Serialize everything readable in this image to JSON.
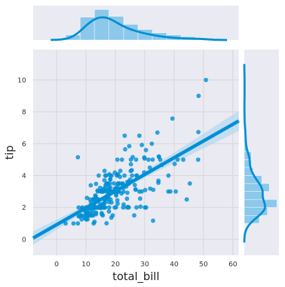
{
  "chart_data": {
    "type": "scatter",
    "subtype": "jointplot-with-regression",
    "xlabel": "total_bill",
    "ylabel": "tip",
    "xlim": [
      -8,
      62
    ],
    "ylim": [
      -1,
      11.9
    ],
    "xticks": [
      0,
      10,
      20,
      30,
      40,
      50,
      60
    ],
    "yticks": [
      0,
      2,
      4,
      6,
      8,
      10
    ],
    "grid": true,
    "colors": {
      "main": "#008fd5",
      "band": "#a8d3f0",
      "hist": "#8cc8ea",
      "panel": "#eaeaf2",
      "grid": "#d6d6d6"
    },
    "regression": {
      "intercept": 0.92,
      "slope": 0.105,
      "ci_halfwidth_at_mean": 0.13
    },
    "x_marginal_hist": {
      "bins": [
        3.07,
        8.0,
        12.9,
        17.8,
        22.8,
        27.7,
        32.6,
        37.5,
        42.4,
        47.3,
        50.81
      ],
      "density": [
        0.012,
        0.054,
        0.072,
        0.056,
        0.037,
        0.025,
        0.017,
        0.012,
        0.008,
        0.005
      ]
    },
    "y_marginal_hist": {
      "bins": [
        1.0,
        1.5,
        2.0,
        2.5,
        3.0,
        3.5,
        4.0,
        4.5,
        5.0,
        5.5,
        6.0,
        7.0
      ],
      "density": [
        0.24,
        0.37,
        0.52,
        0.3,
        0.4,
        0.28,
        0.14,
        0.09,
        0.11,
        0.04,
        0.02
      ]
    },
    "points": [
      [
        16.99,
        1.01
      ],
      [
        10.34,
        1.66
      ],
      [
        21.01,
        3.5
      ],
      [
        23.68,
        3.31
      ],
      [
        24.59,
        3.61
      ],
      [
        25.29,
        4.71
      ],
      [
        8.77,
        2.0
      ],
      [
        26.88,
        3.12
      ],
      [
        15.04,
        1.96
      ],
      [
        14.78,
        3.23
      ],
      [
        10.27,
        1.71
      ],
      [
        35.26,
        5.0
      ],
      [
        15.42,
        1.57
      ],
      [
        18.43,
        3.0
      ],
      [
        14.83,
        3.02
      ],
      [
        21.58,
        3.92
      ],
      [
        10.33,
        1.67
      ],
      [
        16.29,
        3.71
      ],
      [
        16.97,
        3.5
      ],
      [
        20.65,
        3.35
      ],
      [
        17.92,
        4.08
      ],
      [
        20.29,
        2.75
      ],
      [
        15.77,
        2.23
      ],
      [
        39.42,
        7.58
      ],
      [
        19.82,
        3.18
      ],
      [
        17.81,
        2.34
      ],
      [
        13.37,
        2.0
      ],
      [
        12.69,
        2.0
      ],
      [
        21.7,
        4.3
      ],
      [
        19.65,
        3.0
      ],
      [
        9.55,
        1.45
      ],
      [
        18.35,
        2.5
      ],
      [
        15.06,
        3.0
      ],
      [
        20.69,
        2.45
      ],
      [
        17.78,
        3.27
      ],
      [
        24.06,
        3.6
      ],
      [
        16.31,
        2.0
      ],
      [
        16.93,
        3.07
      ],
      [
        18.69,
        2.31
      ],
      [
        31.27,
        5.0
      ],
      [
        16.04,
        2.24
      ],
      [
        17.46,
        2.54
      ],
      [
        13.94,
        3.06
      ],
      [
        9.68,
        1.32
      ],
      [
        30.4,
        5.6
      ],
      [
        18.29,
        3.0
      ],
      [
        22.23,
        5.0
      ],
      [
        32.4,
        6.0
      ],
      [
        28.55,
        2.05
      ],
      [
        18.04,
        3.0
      ],
      [
        12.54,
        2.5
      ],
      [
        10.29,
        2.6
      ],
      [
        34.81,
        5.2
      ],
      [
        9.94,
        1.56
      ],
      [
        25.56,
        4.34
      ],
      [
        19.49,
        3.51
      ],
      [
        38.01,
        3.0
      ],
      [
        26.41,
        1.5
      ],
      [
        11.24,
        1.76
      ],
      [
        48.27,
        6.73
      ],
      [
        20.29,
        3.21
      ],
      [
        13.81,
        2.0
      ],
      [
        11.02,
        1.98
      ],
      [
        18.29,
        3.76
      ],
      [
        17.59,
        2.64
      ],
      [
        20.08,
        3.15
      ],
      [
        16.45,
        2.47
      ],
      [
        3.07,
        1.0
      ],
      [
        20.23,
        2.01
      ],
      [
        15.01,
        2.09
      ],
      [
        12.02,
        1.97
      ],
      [
        17.07,
        3.0
      ],
      [
        26.86,
        3.14
      ],
      [
        25.28,
        5.0
      ],
      [
        14.73,
        2.2
      ],
      [
        10.51,
        1.25
      ],
      [
        17.92,
        3.08
      ],
      [
        27.2,
        4.0
      ],
      [
        22.76,
        3.0
      ],
      [
        17.29,
        2.71
      ],
      [
        19.44,
        3.0
      ],
      [
        16.66,
        3.4
      ],
      [
        10.07,
        1.83
      ],
      [
        32.68,
        5.0
      ],
      [
        15.98,
        2.03
      ],
      [
        34.83,
        5.17
      ],
      [
        13.03,
        2.0
      ],
      [
        18.28,
        4.0
      ],
      [
        24.71,
        5.85
      ],
      [
        21.16,
        3.0
      ],
      [
        28.97,
        3.0
      ],
      [
        22.49,
        3.5
      ],
      [
        5.75,
        1.0
      ],
      [
        16.32,
        4.3
      ],
      [
        22.75,
        3.25
      ],
      [
        40.17,
        4.73
      ],
      [
        27.28,
        4.0
      ],
      [
        12.03,
        1.5
      ],
      [
        21.01,
        3.0
      ],
      [
        12.46,
        1.5
      ],
      [
        11.35,
        2.5
      ],
      [
        15.38,
        3.0
      ],
      [
        44.3,
        2.5
      ],
      [
        22.42,
        3.48
      ],
      [
        20.92,
        4.08
      ],
      [
        15.36,
        1.64
      ],
      [
        20.49,
        4.06
      ],
      [
        25.21,
        4.29
      ],
      [
        18.24,
        3.76
      ],
      [
        14.31,
        4.0
      ],
      [
        14.0,
        3.0
      ],
      [
        7.25,
        1.0
      ],
      [
        38.07,
        4.0
      ],
      [
        23.95,
        2.55
      ],
      [
        25.71,
        4.0
      ],
      [
        17.31,
        3.5
      ],
      [
        29.93,
        5.07
      ],
      [
        10.65,
        1.5
      ],
      [
        12.43,
        1.8
      ],
      [
        24.08,
        2.92
      ],
      [
        11.69,
        2.31
      ],
      [
        13.42,
        1.68
      ],
      [
        14.26,
        2.5
      ],
      [
        15.95,
        2.0
      ],
      [
        12.48,
        2.52
      ],
      [
        29.8,
        4.2
      ],
      [
        8.52,
        1.48
      ],
      [
        14.52,
        2.0
      ],
      [
        11.38,
        2.0
      ],
      [
        22.82,
        2.18
      ],
      [
        19.08,
        1.5
      ],
      [
        20.27,
        2.83
      ],
      [
        11.17,
        1.5
      ],
      [
        12.26,
        2.0
      ],
      [
        18.26,
        3.25
      ],
      [
        8.51,
        1.25
      ],
      [
        10.33,
        2.0
      ],
      [
        14.15,
        2.0
      ],
      [
        16.0,
        2.0
      ],
      [
        13.16,
        2.75
      ],
      [
        17.47,
        3.5
      ],
      [
        34.3,
        6.7
      ],
      [
        41.19,
        5.0
      ],
      [
        27.05,
        5.0
      ],
      [
        16.43,
        2.3
      ],
      [
        8.35,
        1.5
      ],
      [
        18.64,
        1.36
      ],
      [
        11.87,
        1.63
      ],
      [
        9.78,
        1.73
      ],
      [
        7.51,
        2.0
      ],
      [
        14.07,
        2.5
      ],
      [
        13.13,
        2.0
      ],
      [
        17.26,
        2.74
      ],
      [
        24.55,
        2.0
      ],
      [
        19.77,
        2.0
      ],
      [
        29.85,
        5.14
      ],
      [
        48.17,
        5.0
      ],
      [
        25.0,
        3.75
      ],
      [
        13.39,
        2.61
      ],
      [
        16.49,
        2.0
      ],
      [
        21.5,
        3.5
      ],
      [
        12.66,
        2.5
      ],
      [
        16.21,
        2.0
      ],
      [
        13.81,
        2.0
      ],
      [
        17.51,
        3.0
      ],
      [
        24.52,
        3.48
      ],
      [
        20.76,
        2.24
      ],
      [
        31.71,
        4.5
      ],
      [
        10.59,
        1.61
      ],
      [
        10.63,
        2.0
      ],
      [
        50.81,
        10.0
      ],
      [
        15.81,
        3.16
      ],
      [
        7.25,
        5.15
      ],
      [
        31.85,
        3.18
      ],
      [
        16.82,
        4.0
      ],
      [
        32.9,
        3.11
      ],
      [
        17.89,
        2.0
      ],
      [
        14.48,
        2.0
      ],
      [
        34.63,
        3.55
      ],
      [
        34.65,
        3.68
      ],
      [
        23.33,
        5.65
      ],
      [
        45.35,
        3.5
      ],
      [
        23.17,
        6.5
      ],
      [
        40.55,
        3.0
      ],
      [
        20.69,
        5.0
      ],
      [
        20.9,
        3.5
      ],
      [
        30.46,
        2.0
      ],
      [
        18.15,
        3.5
      ],
      [
        23.1,
        4.0
      ],
      [
        15.69,
        1.5
      ],
      [
        19.81,
        4.19
      ],
      [
        28.44,
        2.56
      ],
      [
        15.48,
        2.02
      ],
      [
        16.58,
        4.0
      ],
      [
        7.56,
        1.44
      ],
      [
        10.34,
        2.0
      ],
      [
        43.11,
        5.0
      ],
      [
        13.0,
        2.0
      ],
      [
        13.51,
        2.0
      ],
      [
        18.71,
        4.0
      ],
      [
        12.74,
        2.01
      ],
      [
        13.0,
        2.0
      ],
      [
        16.4,
        2.5
      ],
      [
        20.53,
        4.0
      ],
      [
        16.47,
        3.23
      ],
      [
        26.59,
        3.41
      ],
      [
        38.73,
        3.0
      ],
      [
        24.27,
        2.03
      ],
      [
        12.76,
        2.23
      ],
      [
        30.06,
        2.0
      ],
      [
        25.89,
        5.16
      ],
      [
        48.33,
        9.0
      ],
      [
        13.27,
        2.5
      ],
      [
        28.17,
        6.5
      ],
      [
        12.9,
        1.1
      ],
      [
        28.15,
        3.0
      ],
      [
        11.59,
        1.5
      ],
      [
        7.74,
        1.44
      ],
      [
        30.14,
        3.09
      ],
      [
        12.16,
        2.2
      ],
      [
        13.42,
        3.48
      ],
      [
        8.58,
        1.92
      ],
      [
        15.98,
        3.0
      ],
      [
        13.42,
        1.58
      ],
      [
        16.27,
        2.5
      ],
      [
        10.09,
        2.0
      ],
      [
        20.45,
        3.0
      ],
      [
        13.28,
        2.72
      ],
      [
        22.12,
        2.88
      ],
      [
        24.01,
        2.0
      ],
      [
        15.69,
        3.0
      ],
      [
        11.61,
        3.39
      ],
      [
        10.77,
        1.47
      ],
      [
        15.53,
        3.0
      ],
      [
        10.07,
        1.25
      ],
      [
        12.6,
        1.0
      ],
      [
        32.83,
        1.17
      ],
      [
        35.83,
        4.67
      ],
      [
        29.03,
        5.92
      ],
      [
        27.18,
        2.0
      ],
      [
        22.67,
        2.0
      ],
      [
        17.82,
        1.75
      ],
      [
        18.78,
        3.0
      ]
    ]
  }
}
